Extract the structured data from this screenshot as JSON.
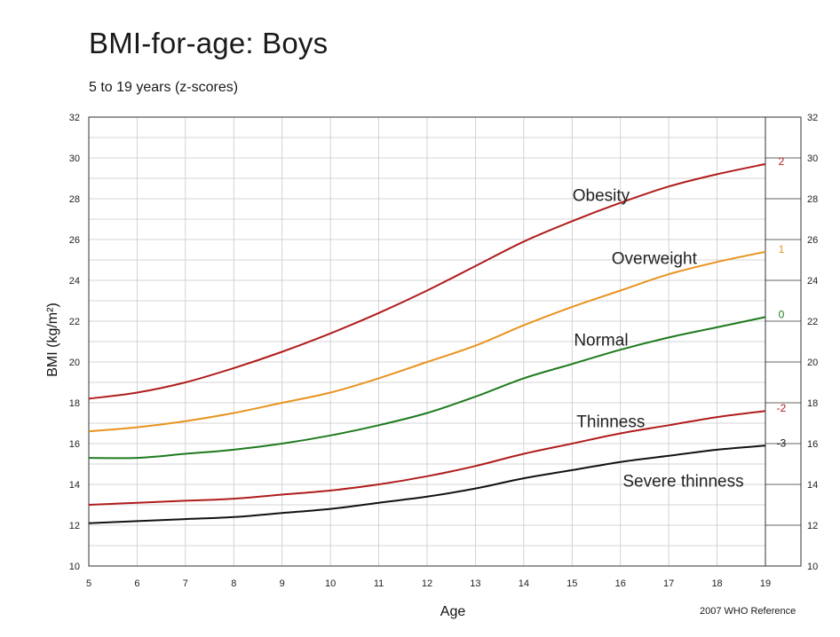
{
  "header": {
    "title": "BMI-for-age: Boys",
    "subtitle": "5 to 19 years (z-scores)"
  },
  "footer": {
    "source": "2007 WHO Reference"
  },
  "colors": {
    "obesity": "#b01c1c",
    "overweight": "#e8931e",
    "normal": "#1e7a1e",
    "thinness": "#b01c1c",
    "severe": "#111111",
    "grid": "#c8c8c8",
    "frame": "#333333"
  },
  "chart_data": {
    "type": "line",
    "title": "BMI-for-age: Boys",
    "subtitle": "5 to 19 years (z-scores)",
    "xlabel": "Age",
    "ylabel": "BMI (kg/m²)",
    "xlim": [
      5,
      19
    ],
    "ylim": [
      10,
      32
    ],
    "xticks": [
      5,
      6,
      7,
      8,
      9,
      10,
      11,
      12,
      13,
      14,
      15,
      16,
      17,
      18,
      19
    ],
    "yticks": [
      10,
      12,
      14,
      16,
      18,
      20,
      22,
      24,
      26,
      28,
      30,
      32
    ],
    "grid": true,
    "x": [
      5,
      6,
      7,
      8,
      9,
      10,
      11,
      12,
      13,
      14,
      15,
      16,
      17,
      18,
      19
    ],
    "series": [
      {
        "name": "Obesity",
        "z": "2",
        "color": "#b01c1c",
        "values": [
          18.2,
          18.5,
          19.0,
          19.7,
          20.5,
          21.4,
          22.4,
          23.5,
          24.7,
          25.9,
          26.9,
          27.8,
          28.6,
          29.2,
          29.7
        ]
      },
      {
        "name": "Overweight",
        "z": "1",
        "color": "#e8931e",
        "values": [
          16.6,
          16.8,
          17.1,
          17.5,
          18.0,
          18.5,
          19.2,
          20.0,
          20.8,
          21.8,
          22.7,
          23.5,
          24.3,
          24.9,
          25.4
        ]
      },
      {
        "name": "Normal",
        "z": "0",
        "color": "#1e7a1e",
        "values": [
          15.3,
          15.3,
          15.5,
          15.7,
          16.0,
          16.4,
          16.9,
          17.5,
          18.3,
          19.2,
          19.9,
          20.6,
          21.2,
          21.7,
          22.2
        ]
      },
      {
        "name": "Thinness",
        "z": "-2",
        "color": "#b01c1c",
        "values": [
          13.0,
          13.1,
          13.2,
          13.3,
          13.5,
          13.7,
          14.0,
          14.4,
          14.9,
          15.5,
          16.0,
          16.5,
          16.9,
          17.3,
          17.6
        ]
      },
      {
        "name": "Severe thinness",
        "z": "-3",
        "color": "#111111",
        "values": [
          12.1,
          12.2,
          12.3,
          12.4,
          12.6,
          12.8,
          13.1,
          13.4,
          13.8,
          14.3,
          14.7,
          15.1,
          15.4,
          15.7,
          15.9
        ]
      }
    ],
    "curve_labels": [
      {
        "text": "Obesity",
        "x": 15.6,
        "y": 27.9
      },
      {
        "text": "Overweight",
        "x": 16.7,
        "y": 24.8
      },
      {
        "text": "Normal",
        "x": 15.6,
        "y": 20.8
      },
      {
        "text": "Thinness",
        "x": 15.8,
        "y": 16.8
      },
      {
        "text": "Severe thinness",
        "x": 17.3,
        "y": 13.9
      }
    ]
  }
}
